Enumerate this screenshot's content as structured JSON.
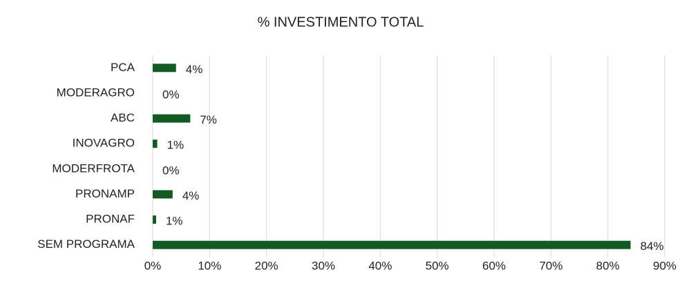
{
  "chart_data": {
    "type": "bar",
    "orientation": "horizontal",
    "title": "% INVESTIMENTO TOTAL",
    "categories": [
      "PCA",
      "MODERAGRO",
      "ABC",
      "INOVAGRO",
      "MODERFROTA",
      "PRONAMP",
      "PRONAF",
      "SEM PROGRAMA"
    ],
    "values": [
      4.1,
      0,
      6.6,
      0.8,
      0,
      3.5,
      0.6,
      84
    ],
    "value_labels": [
      "4%",
      "0%",
      "7%",
      "1%",
      "0%",
      "4%",
      "1%",
      "84%"
    ],
    "color": "#145a25",
    "xlim": [
      0,
      90
    ],
    "xticks": [
      {
        "value": 0,
        "label": "0%"
      },
      {
        "value": 10,
        "label": "10%"
      },
      {
        "value": 20,
        "label": "20%"
      },
      {
        "value": 30,
        "label": "30%"
      },
      {
        "value": 40,
        "label": "40%"
      },
      {
        "value": 50,
        "label": "50%"
      },
      {
        "value": 60,
        "label": "60%"
      },
      {
        "value": 70,
        "label": "70%"
      },
      {
        "value": 80,
        "label": "80%"
      },
      {
        "value": 90,
        "label": "90%"
      }
    ],
    "grid": true
  }
}
